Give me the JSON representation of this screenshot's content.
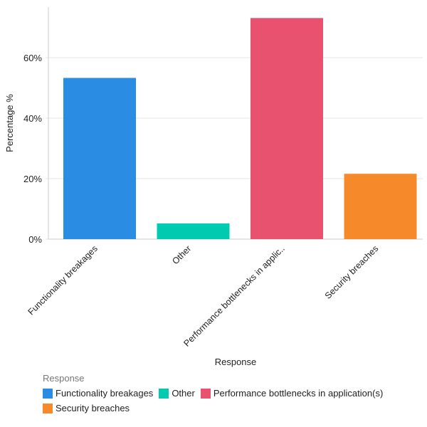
{
  "chart_data": {
    "type": "bar",
    "categories": [
      "Functionality breakages",
      "Other",
      "Performance bottlenecks in applic..",
      "Security breaches"
    ],
    "legend_labels": [
      "Functionality breakages",
      "Other",
      "Performance bottlenecks in application(s)",
      "Security breaches"
    ],
    "values": [
      53.3,
      5.2,
      73.1,
      21.6
    ],
    "colors": [
      "#2a8ce2",
      "#00cbb0",
      "#e8526f",
      "#f6892a"
    ],
    "xlabel": "Response",
    "ylabel": "Percentage %",
    "ylim": [
      0,
      76
    ],
    "yticks": [
      0,
      20,
      40,
      60
    ],
    "ytick_labels": [
      "0%",
      "20%",
      "40%",
      "60%"
    ],
    "grid": true,
    "legend_title": "Response",
    "legend_position": "bottom-left"
  }
}
